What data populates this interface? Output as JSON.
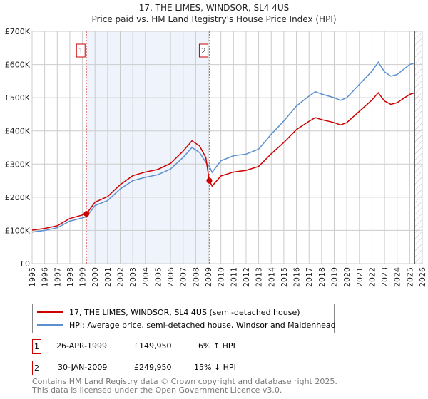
{
  "chart_data": {
    "type": "line",
    "title": "17, THE LIMES, WINDSOR, SL4 4US",
    "subtitle": "Price paid vs. HM Land Registry's House Price Index (HPI)",
    "xlim": [
      1995,
      2026
    ],
    "ylim": [
      0,
      700000
    ],
    "y_ticks": [
      "£0",
      "£100K",
      "£200K",
      "£300K",
      "£400K",
      "£500K",
      "£600K",
      "£700K"
    ],
    "x_ticks": [
      "1995",
      "1996",
      "1997",
      "1998",
      "1999",
      "2000",
      "2001",
      "2002",
      "2003",
      "2004",
      "2005",
      "2006",
      "2007",
      "2008",
      "2009",
      "2010",
      "2011",
      "2012",
      "2013",
      "2014",
      "2015",
      "2016",
      "2017",
      "2018",
      "2019",
      "2020",
      "2021",
      "2022",
      "2023",
      "2024",
      "2025",
      "2026"
    ],
    "grid": true,
    "shaded_range": [
      1999.32,
      2009.08
    ],
    "hatched_from": 2025.4,
    "series": [
      {
        "name": "17, THE LIMES, WINDSOR, SL4 4US (semi-detached house)",
        "color": "#cc0000",
        "x": [
          1995,
          1996,
          1997,
          1998,
          1999.32,
          2000,
          2001,
          2002,
          2003,
          2004,
          2005,
          2006,
          2007,
          2007.7,
          2008.3,
          2008.8,
          2009.08,
          2009.3,
          2010,
          2011,
          2012,
          2013,
          2014,
          2015,
          2016,
          2017,
          2017.5,
          2018,
          2019,
          2019.5,
          2020,
          2021,
          2022,
          2022.5,
          2023,
          2023.5,
          2024,
          2025,
          2025.4
        ],
        "y": [
          101000,
          106000,
          114000,
          136000,
          149950,
          185000,
          202000,
          238000,
          265000,
          276000,
          284000,
          302000,
          339000,
          370000,
          355000,
          320000,
          249950,
          234000,
          264000,
          276000,
          281000,
          293000,
          331000,
          365000,
          404000,
          429000,
          440000,
          434000,
          425000,
          418000,
          425000,
          459000,
          493000,
          515000,
          490000,
          480000,
          485000,
          510000,
          515000
        ]
      },
      {
        "name": "HPI: Average price, semi-detached house, Windsor and Maidenhead",
        "color": "#5b8fd0",
        "x": [
          1995,
          1996,
          1997,
          1998,
          1999.32,
          2000,
          2001,
          2002,
          2003,
          2004,
          2005,
          2006,
          2007,
          2007.7,
          2008.3,
          2008.8,
          2009.08,
          2009.3,
          2010,
          2011,
          2012,
          2013,
          2014,
          2015,
          2016,
          2017,
          2017.5,
          2018,
          2019,
          2019.5,
          2020,
          2021,
          2022,
          2022.5,
          2023,
          2023.5,
          2024,
          2025,
          2025.4
        ],
        "y": [
          95000,
          100000,
          108000,
          128000,
          141000,
          175000,
          190000,
          225000,
          250000,
          260000,
          268000,
          285000,
          320000,
          350000,
          335000,
          305000,
          294000,
          275000,
          310000,
          325000,
          330000,
          345000,
          390000,
          430000,
          475000,
          505000,
          518000,
          511000,
          500000,
          492000,
          500000,
          540000,
          580000,
          607000,
          578000,
          565000,
          570000,
          600000,
          605000
        ]
      }
    ],
    "sales": [
      {
        "label": "1",
        "date": "26-APR-1999",
        "price": "£149,950",
        "hpi": "6% ↑ HPI",
        "x": 1999.32,
        "y": 149950
      },
      {
        "label": "2",
        "date": "30-JAN-2009",
        "price": "£249,950",
        "hpi": "15% ↓ HPI",
        "x": 2009.08,
        "y": 249950
      }
    ]
  },
  "footer": {
    "line1": "Contains HM Land Registry data © Crown copyright and database right 2025.",
    "line2": "This data is licensed under the Open Government Licence v3.0."
  }
}
